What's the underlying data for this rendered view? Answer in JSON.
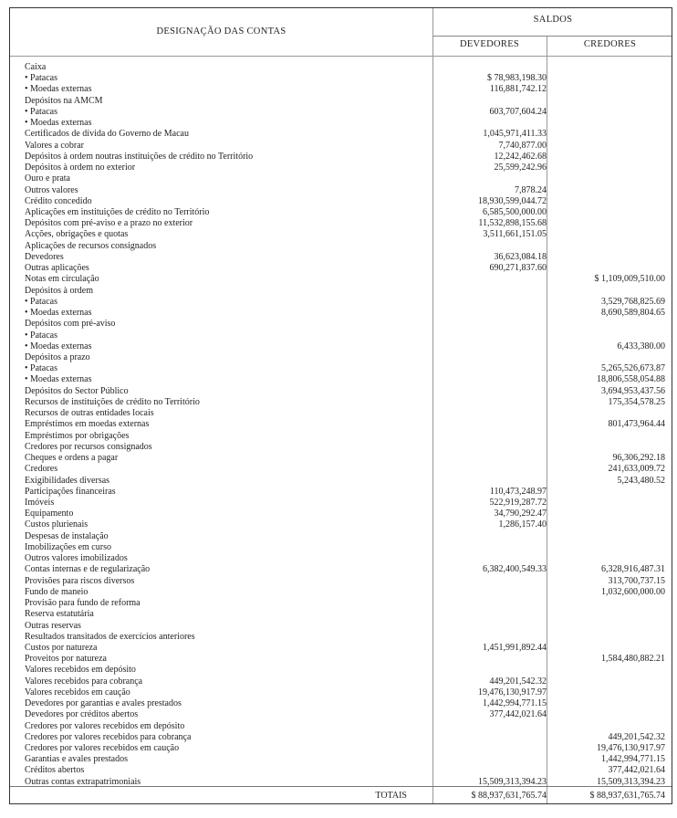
{
  "header": {
    "designacao": "DESIGNAÇÃO DAS CONTAS",
    "saldos": "SALDOS",
    "devedores": "DEVEDORES",
    "credores": "CREDORES"
  },
  "rows": [
    {
      "label": "Caixa",
      "debit": "",
      "credit": ""
    },
    {
      "label": "• Patacas",
      "debit": "$ 78,983,198.30",
      "credit": ""
    },
    {
      "label": "• Moedas externas",
      "debit": "116,881,742.12",
      "credit": ""
    },
    {
      "label": "Depósitos na AMCM",
      "debit": "",
      "credit": ""
    },
    {
      "label": "• Patacas",
      "debit": "603,707,604.24",
      "credit": ""
    },
    {
      "label": "• Moedas externas",
      "debit": "",
      "credit": ""
    },
    {
      "label": "Certificados de dívida do Governo de Macau",
      "debit": "1,045,971,411.33",
      "credit": ""
    },
    {
      "label": "Valores a cobrar",
      "debit": "7,740,877.00",
      "credit": ""
    },
    {
      "label": "Depósitos à ordem noutras instituições de crédito no Território",
      "debit": "12,242,462.68",
      "credit": ""
    },
    {
      "label": "Depósitos à ordem no exterior",
      "debit": "25,599,242.96",
      "credit": ""
    },
    {
      "label": "Ouro e prata",
      "debit": "",
      "credit": ""
    },
    {
      "label": "Outros valores",
      "debit": "7,878.24",
      "credit": ""
    },
    {
      "label": "Crédito concedido",
      "debit": "18,930,599,044.72",
      "credit": ""
    },
    {
      "label": "Aplicações em instituições de crédito no Território",
      "debit": "6,585,500,000.00",
      "credit": ""
    },
    {
      "label": "Depósitos com pré-aviso e a prazo no exterior",
      "debit": "11,532,898,155.68",
      "credit": ""
    },
    {
      "label": "Acções, obrigações e quotas",
      "debit": "3,511,661,151.05",
      "credit": ""
    },
    {
      "label": "Aplicações de recursos consignados",
      "debit": "",
      "credit": ""
    },
    {
      "label": "Devedores",
      "debit": "36,623,084.18",
      "credit": ""
    },
    {
      "label": "Outras aplicações",
      "debit": "690,271,837.60",
      "credit": ""
    },
    {
      "label": "Notas em circulação",
      "debit": "",
      "credit": "$ 1,109,009,510.00"
    },
    {
      "label": "Depósitos à ordem",
      "debit": "",
      "credit": ""
    },
    {
      "label": "• Patacas",
      "debit": "",
      "credit": "3,529,768,825.69"
    },
    {
      "label": "• Moedas externas",
      "debit": "",
      "credit": "8,690,589,804.65"
    },
    {
      "label": "Depósitos com pré-aviso",
      "debit": "",
      "credit": ""
    },
    {
      "label": "• Patacas",
      "debit": "",
      "credit": ""
    },
    {
      "label": "• Moedas externas",
      "debit": "",
      "credit": "6,433,380.00"
    },
    {
      "label": "Depósitos a prazo",
      "debit": "",
      "credit": ""
    },
    {
      "label": "• Patacas",
      "debit": "",
      "credit": "5,265,526,673.87"
    },
    {
      "label": "• Moedas externas",
      "debit": "",
      "credit": "18,806,558,054.88"
    },
    {
      "label": "Depósitos do Sector Público",
      "debit": "",
      "credit": "3,694,953,437.56"
    },
    {
      "label": "Recursos de instituições de crédito no Território",
      "debit": "",
      "credit": "175,354,578.25"
    },
    {
      "label": "Recursos de outras entidades locais",
      "debit": "",
      "credit": ""
    },
    {
      "label": "Empréstimos em moedas externas",
      "debit": "",
      "credit": "801,473,964.44"
    },
    {
      "label": "Empréstimos por obrigações",
      "debit": "",
      "credit": ""
    },
    {
      "label": "Credores por recursos consignados",
      "debit": "",
      "credit": ""
    },
    {
      "label": "Cheques e ordens a pagar",
      "debit": "",
      "credit": "96,306,292.18"
    },
    {
      "label": "Credores",
      "debit": "",
      "credit": "241,633,009.72"
    },
    {
      "label": "Exigibilidades diversas",
      "debit": "",
      "credit": "5,243,480.52"
    },
    {
      "label": "Participações financeiras",
      "debit": "110,473,248.97",
      "credit": ""
    },
    {
      "label": "Imóveis",
      "debit": "522,919,287.72",
      "credit": ""
    },
    {
      "label": "Equipamento",
      "debit": "34,790,292.47",
      "credit": ""
    },
    {
      "label": "Custos plurienais",
      "debit": "1,286,157.40",
      "credit": ""
    },
    {
      "label": "Despesas de instalação",
      "debit": "",
      "credit": ""
    },
    {
      "label": "Imobilizações em curso",
      "debit": "",
      "credit": ""
    },
    {
      "label": "Outros valores imobilizados",
      "debit": "",
      "credit": ""
    },
    {
      "label": "Contas internas e de regularização",
      "debit": "6,382,400,549.33",
      "credit": "6,328,916,487.31"
    },
    {
      "label": "Provisões para riscos diversos",
      "debit": "",
      "credit": "313,700,737.15"
    },
    {
      "label": "Fundo de maneio",
      "debit": "",
      "credit": "1,032,600,000.00"
    },
    {
      "label": "Provisão para fundo de reforma",
      "debit": "",
      "credit": ""
    },
    {
      "label": "Reserva estatutária",
      "debit": "",
      "credit": ""
    },
    {
      "label": "Outras reservas",
      "debit": "",
      "credit": ""
    },
    {
      "label": "Resultados transitados de exercícios anteriores",
      "debit": "",
      "credit": ""
    },
    {
      "label": "Custos por natureza",
      "debit": "1,451,991,892.44",
      "credit": ""
    },
    {
      "label": "Proveitos por natureza",
      "debit": "",
      "credit": "1,584,480,882.21"
    },
    {
      "label": "Valores recebidos em depósito",
      "debit": "",
      "credit": ""
    },
    {
      "label": "Valores recebidos para cobrança",
      "debit": "449,201,542.32",
      "credit": ""
    },
    {
      "label": "Valores recebidos em caução",
      "debit": "19,476,130,917.97",
      "credit": ""
    },
    {
      "label": "Devedores por garantias e avales prestados",
      "debit": "1,442,994,771.15",
      "credit": ""
    },
    {
      "label": "Devedores por créditos abertos",
      "debit": "377,442,021.64",
      "credit": ""
    },
    {
      "label": "Credores por valores recebidos em depósito",
      "debit": "",
      "credit": ""
    },
    {
      "label": "Credores por valores recebidos para cobrança",
      "debit": "",
      "credit": "449,201,542.32"
    },
    {
      "label": "Credores por valores recebidos em caução",
      "debit": "",
      "credit": "19,476,130,917.97"
    },
    {
      "label": "Garantias e avales prestados",
      "debit": "",
      "credit": "1,442,994,771.15"
    },
    {
      "label": "Créditos abertos",
      "debit": "",
      "credit": "377,442,021.64"
    },
    {
      "label": "Outras contas extrapatrimoniais",
      "debit": "15,509,313,394.23",
      "credit": "15,509,313,394.23"
    }
  ],
  "totals": {
    "label": "TOTAIS",
    "debit": "$ 88,937,631,765.74",
    "credit": "$ 88,937,631,765.74"
  }
}
